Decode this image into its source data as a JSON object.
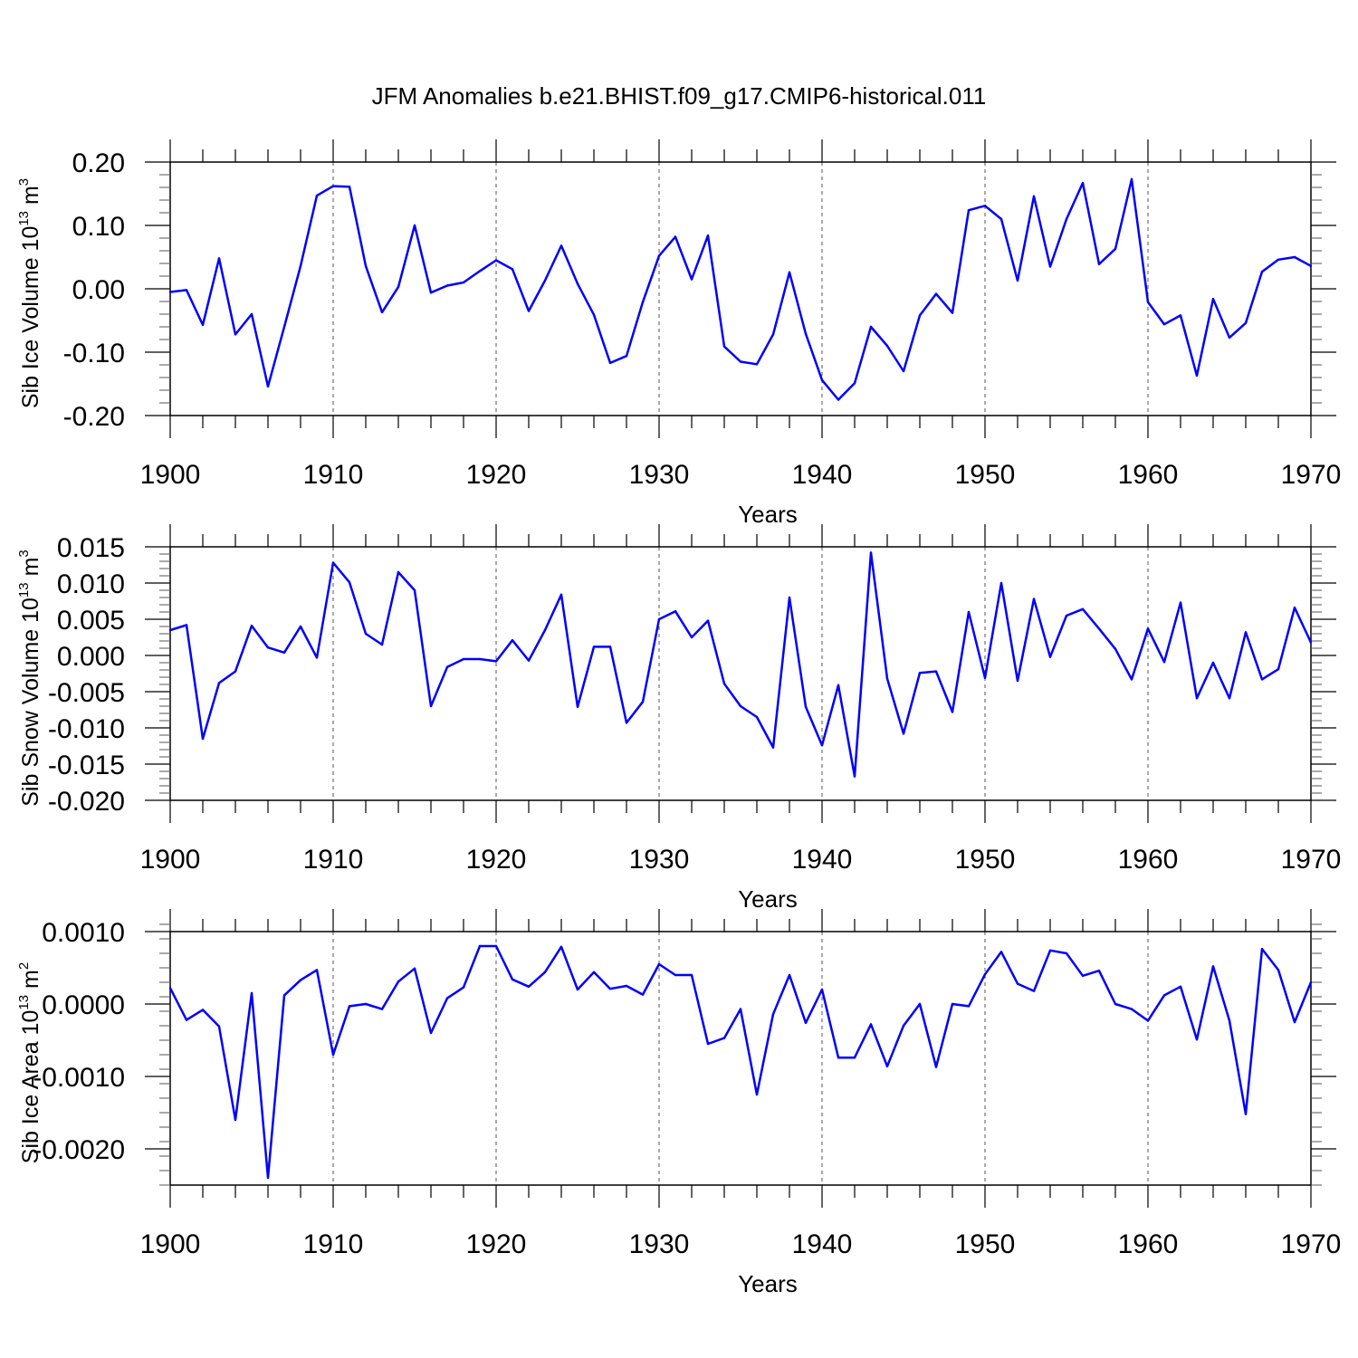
{
  "title": "JFM Anomalies b.e21.BHIST.f09_g17.CMIP6-historical.011",
  "line_color": "#0000ff",
  "chart_data": [
    {
      "type": "line",
      "ylabel_base": "Sib Ice Volume 10",
      "ylabel_exp": "13",
      "ylabel_unit": "m",
      "ylabel_unit_exp": "3",
      "xlabel": "Years",
      "xlim": [
        1900,
        1970
      ],
      "ylim": [
        -0.2,
        0.2
      ],
      "xticks": [
        1900,
        1910,
        1920,
        1930,
        1940,
        1950,
        1960,
        1970
      ],
      "yticks": [
        -0.2,
        -0.1,
        0.0,
        0.1,
        0.2
      ],
      "ytick_labels": [
        "-0.20",
        "-0.10",
        "0.00",
        "0.10",
        "0.20"
      ],
      "x": [
        1900,
        1901,
        1902,
        1903,
        1904,
        1905,
        1906,
        1907,
        1908,
        1909,
        1910,
        1911,
        1912,
        1913,
        1914,
        1915,
        1916,
        1917,
        1918,
        1919,
        1920,
        1921,
        1922,
        1923,
        1924,
        1925,
        1926,
        1927,
        1928,
        1929,
        1930,
        1931,
        1932,
        1933,
        1934,
        1935,
        1936,
        1937,
        1938,
        1939,
        1940,
        1941,
        1942,
        1943,
        1944,
        1945,
        1946,
        1947,
        1948,
        1949,
        1950,
        1951,
        1952,
        1953,
        1954,
        1955,
        1956,
        1957,
        1958,
        1959,
        1960,
        1961,
        1962,
        1963,
        1964,
        1965,
        1966,
        1967,
        1968,
        1969,
        1970
      ],
      "values": [
        -0.005,
        -0.002,
        -0.057,
        0.048,
        -0.072,
        -0.04,
        -0.154,
        -0.06,
        0.036,
        0.147,
        0.162,
        0.161,
        0.036,
        -0.037,
        0.003,
        0.1,
        -0.006,
        0.005,
        0.01,
        0.028,
        0.045,
        0.031,
        -0.035,
        0.013,
        0.068,
        0.008,
        -0.041,
        -0.117,
        -0.106,
        -0.021,
        0.052,
        0.082,
        0.015,
        0.084,
        -0.091,
        -0.115,
        -0.119,
        -0.072,
        0.026,
        -0.071,
        -0.144,
        -0.175,
        -0.149,
        -0.06,
        -0.09,
        -0.13,
        -0.042,
        -0.008,
        -0.038,
        0.124,
        0.131,
        0.11,
        0.013,
        0.146,
        0.035,
        0.11,
        0.167,
        0.039,
        0.063,
        0.173,
        -0.021,
        -0.056,
        -0.042,
        -0.137,
        -0.016,
        -0.077,
        -0.054,
        0.027,
        0.046,
        0.05,
        0.036
      ]
    },
    {
      "type": "line",
      "ylabel_base": "Sib Snow Volume 10",
      "ylabel_exp": "13",
      "ylabel_unit": "m",
      "ylabel_unit_exp": "3",
      "xlabel": "Years",
      "xlim": [
        1900,
        1970
      ],
      "ylim": [
        -0.02,
        0.015
      ],
      "xticks": [
        1900,
        1910,
        1920,
        1930,
        1940,
        1950,
        1960,
        1970
      ],
      "yticks": [
        -0.02,
        -0.015,
        -0.01,
        -0.005,
        0.0,
        0.005,
        0.01,
        0.015
      ],
      "ytick_labels": [
        "-0.020",
        "-0.015",
        "-0.010",
        "-0.005",
        "0.000",
        "0.005",
        "0.010",
        "0.015"
      ],
      "x": [
        1900,
        1901,
        1902,
        1903,
        1904,
        1905,
        1906,
        1907,
        1908,
        1909,
        1910,
        1911,
        1912,
        1913,
        1914,
        1915,
        1916,
        1917,
        1918,
        1919,
        1920,
        1921,
        1922,
        1923,
        1924,
        1925,
        1926,
        1927,
        1928,
        1929,
        1930,
        1931,
        1932,
        1933,
        1934,
        1935,
        1936,
        1937,
        1938,
        1939,
        1940,
        1941,
        1942,
        1943,
        1944,
        1945,
        1946,
        1947,
        1948,
        1949,
        1950,
        1951,
        1952,
        1953,
        1954,
        1955,
        1956,
        1957,
        1958,
        1959,
        1960,
        1961,
        1962,
        1963,
        1964,
        1965,
        1966,
        1967,
        1968,
        1969,
        1970
      ],
      "values": [
        0.0035,
        0.0042,
        -0.0115,
        -0.0038,
        -0.0022,
        0.0041,
        0.0011,
        0.0004,
        0.004,
        -0.0003,
        0.0128,
        0.0101,
        0.003,
        0.0015,
        0.0115,
        0.009,
        -0.007,
        -0.0016,
        -0.0005,
        -0.0005,
        -0.0008,
        0.0021,
        -0.0007,
        0.0035,
        0.0084,
        -0.0071,
        0.0012,
        0.0012,
        -0.0093,
        -0.0064,
        0.005,
        0.0061,
        0.0025,
        0.0048,
        -0.0039,
        -0.007,
        -0.0085,
        -0.0127,
        0.008,
        -0.0071,
        -0.0124,
        -0.0041,
        -0.0167,
        0.0142,
        -0.0032,
        -0.0108,
        -0.0024,
        -0.0022,
        -0.0078,
        0.006,
        -0.0031,
        0.01,
        -0.0035,
        0.0078,
        -0.0002,
        0.0055,
        0.0064,
        0.0037,
        0.0009,
        -0.0033,
        0.0037,
        -0.0009,
        0.0073,
        -0.0059,
        -0.001,
        -0.0059,
        0.0032,
        -0.0033,
        -0.0019,
        0.0066,
        0.0018
      ]
    },
    {
      "type": "line",
      "ylabel_base": "Sib Ice Area 10",
      "ylabel_exp": "13",
      "ylabel_unit": "m",
      "ylabel_unit_exp": "2",
      "xlabel": "Years",
      "xlim": [
        1900,
        1970
      ],
      "ylim": [
        -0.0025,
        0.001
      ],
      "xticks": [
        1900,
        1910,
        1920,
        1930,
        1940,
        1950,
        1960,
        1970
      ],
      "yticks": [
        -0.002,
        -0.001,
        0.0,
        0.001
      ],
      "ytick_labels": [
        "-0.0020",
        "-0.0010",
        "0.0000",
        "0.0010"
      ],
      "x": [
        1900,
        1901,
        1902,
        1903,
        1904,
        1905,
        1906,
        1907,
        1908,
        1909,
        1910,
        1911,
        1912,
        1913,
        1914,
        1915,
        1916,
        1917,
        1918,
        1919,
        1920,
        1921,
        1922,
        1923,
        1924,
        1925,
        1926,
        1927,
        1928,
        1929,
        1930,
        1931,
        1932,
        1933,
        1934,
        1935,
        1936,
        1937,
        1938,
        1939,
        1940,
        1941,
        1942,
        1943,
        1944,
        1945,
        1946,
        1947,
        1948,
        1949,
        1950,
        1951,
        1952,
        1953,
        1954,
        1955,
        1956,
        1957,
        1958,
        1959,
        1960,
        1961,
        1962,
        1963,
        1964,
        1965,
        1966,
        1967,
        1968,
        1969,
        1970
      ],
      "values": [
        0.00022,
        -0.00022,
        -8e-05,
        -0.00031,
        -0.0016,
        0.00015,
        -0.0024,
        0.00012,
        0.00033,
        0.00047,
        -0.0007,
        -3e-05,
        0.0,
        -7e-05,
        0.00031,
        0.00049,
        -0.0004,
        8e-05,
        0.00023,
        0.0008,
        0.0008,
        0.00034,
        0.00024,
        0.00044,
        0.00079,
        0.0002,
        0.00044,
        0.00021,
        0.00025,
        0.00013,
        0.00055,
        0.0004,
        0.0004,
        -0.00055,
        -0.00047,
        -7e-05,
        -0.00125,
        -0.00014,
        0.0004,
        -0.00026,
        0.0002,
        -0.00074,
        -0.00074,
        -0.00028,
        -0.00086,
        -0.0003,
        0.0,
        -0.00087,
        0.0,
        -3e-05,
        0.00041,
        0.00072,
        0.00028,
        0.00018,
        0.00074,
        0.0007,
        0.00039,
        0.00046,
        0.0,
        -7e-05,
        -0.00023,
        0.00012,
        0.00024,
        -0.00049,
        0.00052,
        -0.00023,
        -0.00152,
        0.00076,
        0.00047,
        -0.00025,
        0.0003
      ]
    }
  ]
}
